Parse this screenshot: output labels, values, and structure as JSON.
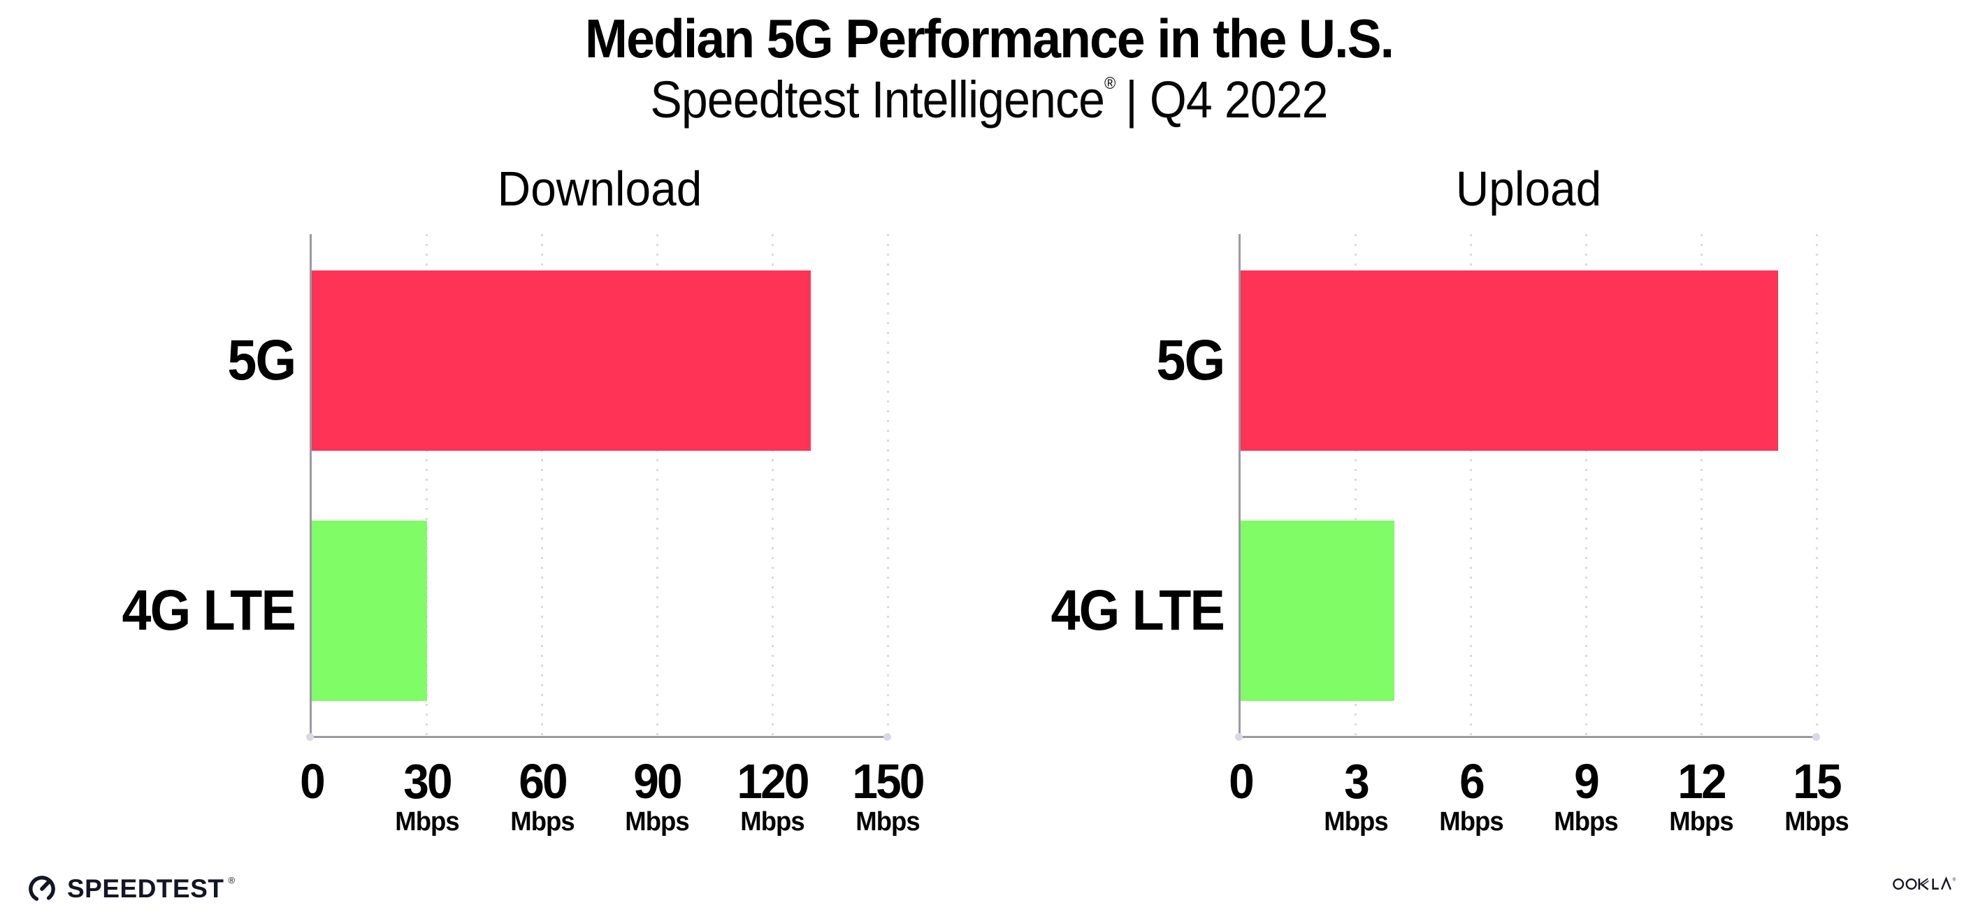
{
  "header": {
    "title": "Median 5G Performance in the U.S.",
    "subtitle_brand": "Speedtest Intelligence",
    "subtitle_reg": "®",
    "subtitle_rest": "| Q4 2022"
  },
  "colors": {
    "bar_5g": "#FF3355",
    "bar_4g_lte": "#80FC66",
    "gridline": "#D9D9E6",
    "axis": "#9A9AA2",
    "logo": "#141526"
  },
  "chart_data": [
    {
      "type": "bar",
      "orientation": "horizontal",
      "title": "Download",
      "categories": [
        "5G",
        "4G LTE"
      ],
      "values": [
        130,
        30
      ],
      "unit": "Mbps",
      "xlabel": "",
      "ylabel": "",
      "xlim": [
        0,
        150
      ],
      "xticks": [
        0,
        30,
        60,
        90,
        120,
        150
      ],
      "xtick_unit": "Mbps",
      "grid": "dotted vertical gridline at each nonzero tick",
      "legend": "none",
      "bar_colors": [
        "#FF3355",
        "#80FC66"
      ]
    },
    {
      "type": "bar",
      "orientation": "horizontal",
      "title": "Upload",
      "categories": [
        "5G",
        "4G LTE"
      ],
      "values": [
        14,
        4
      ],
      "unit": "Mbps",
      "xlabel": "",
      "ylabel": "",
      "xlim": [
        0,
        15
      ],
      "xticks": [
        0,
        3,
        6,
        9,
        12,
        15
      ],
      "xtick_unit": "Mbps",
      "grid": "dotted vertical gridline at each nonzero tick",
      "legend": "none",
      "bar_colors": [
        "#FF3355",
        "#80FC66"
      ]
    }
  ],
  "footer": {
    "speedtest_label": "SPEEDTEST",
    "speedtest_reg": "®",
    "ookla_label": "OOKLA",
    "ookla_reg": "®"
  }
}
